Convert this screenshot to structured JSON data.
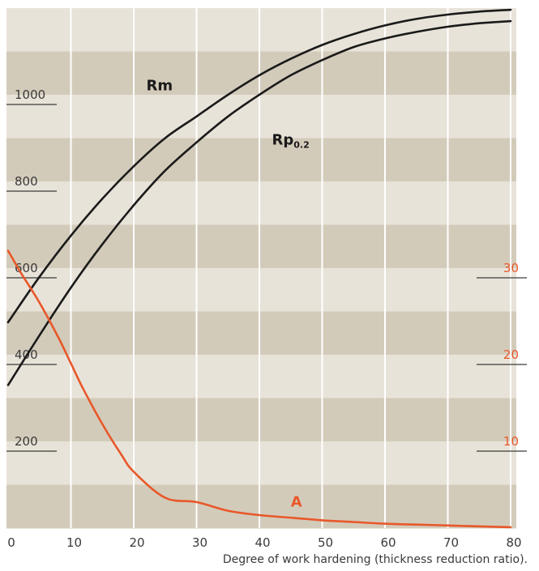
{
  "chart_data": {
    "type": "line",
    "title": "",
    "xlabel": "Degree of work hardening (thickness reduction ratio).",
    "ylabel": "",
    "xlim": [
      0,
      80
    ],
    "x_ticks": [
      "0",
      "10",
      "20",
      "30",
      "40",
      "50",
      "60",
      "70",
      "80"
    ],
    "y_left_ticks": [
      "200",
      "400",
      "600",
      "800",
      "1000"
    ],
    "y_left_values": [
      200,
      400,
      600,
      800,
      1000
    ],
    "y_right_ticks": [
      "10",
      "20",
      "30"
    ],
    "y_right_values": [
      10,
      20,
      30
    ],
    "ylim_left": [
      0,
      1200
    ],
    "ylim_right": [
      0,
      60
    ],
    "grid": "vertical",
    "colors": {
      "band_light": "#e8e3d9",
      "band_dark": "#d3cbba",
      "black_series": "#1a1a1a",
      "orange_series": "#e8582a",
      "tick_left": "#3a3a3a",
      "tick_right": "#e8582a"
    },
    "series": [
      {
        "name": "Rm",
        "label_text": "Rm",
        "label_sub": "",
        "axis": "left",
        "color": "#1a1a1a",
        "label_at": [
          22,
          1010
        ],
        "x": [
          0,
          5,
          10,
          15,
          20,
          25,
          30,
          35,
          40,
          45,
          50,
          55,
          60,
          65,
          70,
          75,
          80
        ],
        "y": [
          475,
          580,
          675,
          760,
          835,
          900,
          950,
          1000,
          1045,
          1083,
          1115,
          1140,
          1160,
          1175,
          1185,
          1192,
          1196
        ]
      },
      {
        "name": "Rp0.2",
        "label_text": "Rp",
        "label_sub": "0.2",
        "axis": "left",
        "color": "#1a1a1a",
        "label_at": [
          42,
          885
        ],
        "x": [
          0,
          5,
          10,
          15,
          20,
          25,
          30,
          35,
          40,
          45,
          50,
          55,
          60,
          65,
          70,
          75,
          80
        ],
        "y": [
          330,
          445,
          555,
          655,
          745,
          825,
          890,
          950,
          1000,
          1045,
          1080,
          1110,
          1130,
          1145,
          1157,
          1165,
          1170
        ]
      },
      {
        "name": "A",
        "label_text": "A",
        "label_sub": "",
        "axis": "right",
        "color": "#e8582a",
        "label_at": [
          45,
          2.5
        ],
        "x": [
          0,
          2,
          5,
          8,
          10,
          12,
          15,
          18,
          20,
          25,
          30,
          35,
          40,
          45,
          50,
          55,
          60,
          65,
          70,
          75,
          80
        ],
        "y": [
          32,
          29.5,
          26,
          22,
          19,
          16,
          12,
          8.5,
          6.5,
          3.5,
          3,
          2,
          1.5,
          1.2,
          0.9,
          0.7,
          0.5,
          0.4,
          0.3,
          0.2,
          0.1
        ]
      }
    ]
  }
}
